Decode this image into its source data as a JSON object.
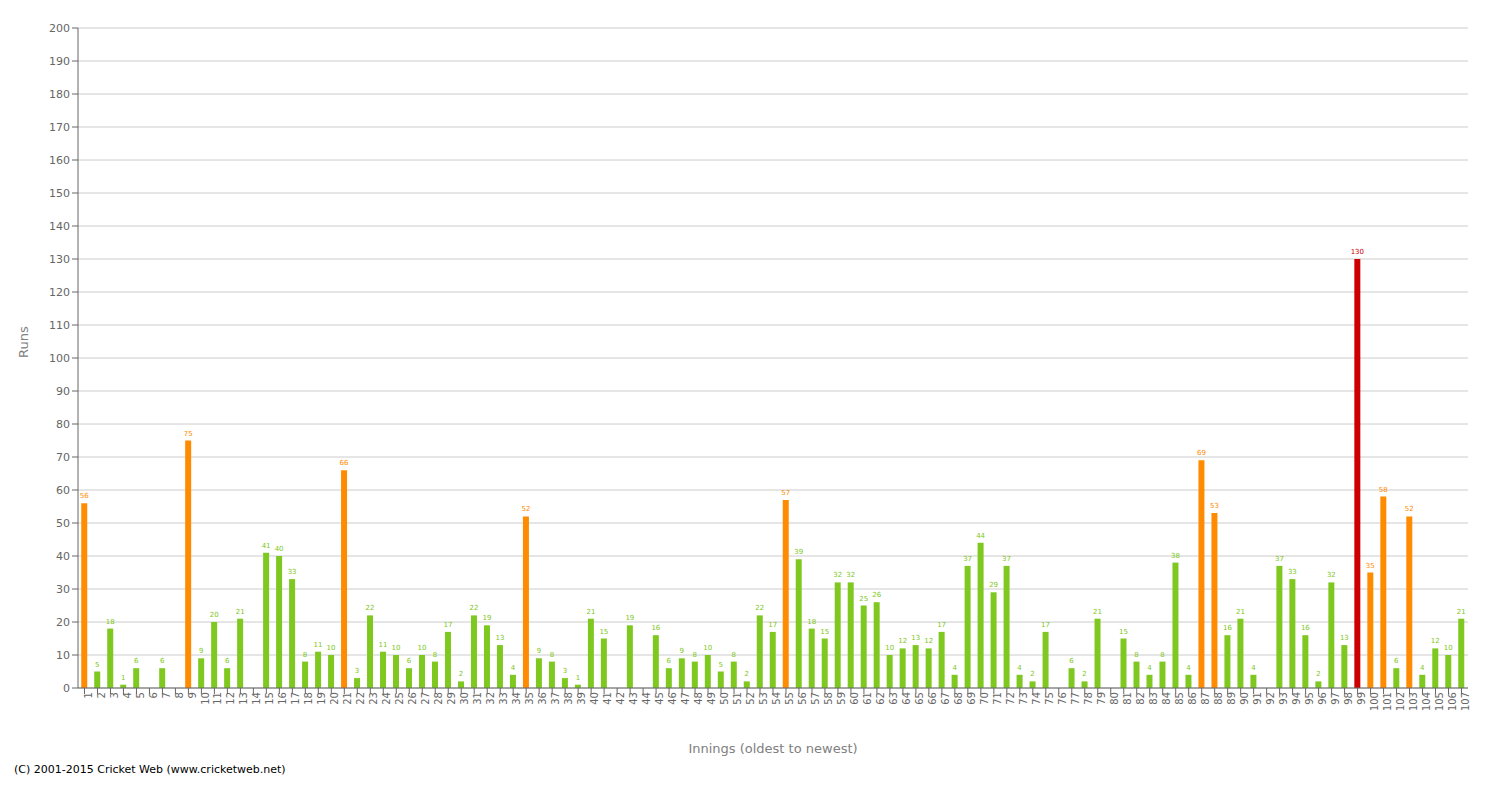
{
  "chart_data": {
    "type": "bar",
    "xlabel": "Innings (oldest to newest)",
    "ylabel": "Runs",
    "categories": [
      "1",
      "2",
      "3",
      "4",
      "5",
      "6",
      "7",
      "8",
      "9",
      "10",
      "11",
      "12",
      "13",
      "14",
      "15",
      "16",
      "17",
      "18",
      "19",
      "20",
      "21",
      "22",
      "23",
      "24",
      "25",
      "26",
      "27",
      "28",
      "29",
      "30",
      "31",
      "32",
      "33",
      "34",
      "35",
      "36",
      "37",
      "38",
      "39",
      "40",
      "41",
      "42",
      "43",
      "44",
      "45",
      "46",
      "47",
      "48",
      "49",
      "50",
      "51",
      "52",
      "53",
      "54",
      "55",
      "56",
      "57",
      "58",
      "59",
      "60",
      "61",
      "62",
      "63",
      "64",
      "65",
      "66",
      "67",
      "68",
      "69",
      "70",
      "71",
      "72",
      "73",
      "74",
      "75",
      "76",
      "77",
      "78",
      "79",
      "80",
      "81",
      "82",
      "83",
      "84",
      "85",
      "86",
      "87",
      "88",
      "89",
      "90",
      "91",
      "92",
      "93",
      "94",
      "95",
      "96",
      "97",
      "98",
      "99",
      "100",
      "101",
      "102",
      "103",
      "104",
      "105",
      "106",
      "107"
    ],
    "values": [
      56,
      5,
      18,
      1,
      6,
      0,
      6,
      0,
      75,
      9,
      20,
      6,
      21,
      0,
      41,
      40,
      33,
      8,
      11,
      10,
      66,
      3,
      22,
      11,
      10,
      6,
      10,
      8,
      17,
      2,
      22,
      19,
      13,
      4,
      52,
      9,
      8,
      3,
      1,
      21,
      15,
      0,
      19,
      0,
      16,
      6,
      9,
      8,
      10,
      5,
      8,
      2,
      22,
      17,
      57,
      39,
      18,
      15,
      32,
      32,
      25,
      26,
      10,
      12,
      13,
      12,
      17,
      4,
      37,
      44,
      29,
      37,
      4,
      2,
      17,
      0,
      6,
      2,
      21,
      0,
      15,
      8,
      4,
      8,
      38,
      4,
      69,
      53,
      16,
      21,
      4,
      0,
      37,
      33,
      16,
      2,
      32,
      13,
      130,
      35,
      58,
      6,
      52,
      4,
      12,
      10,
      21
    ],
    "colors": [
      "#ff8c00",
      "#7ec820",
      "#7ec820",
      "#7ec820",
      "#7ec820",
      "#7ec820",
      "#7ec820",
      "#7ec820",
      "#ff8c00",
      "#7ec820",
      "#7ec820",
      "#7ec820",
      "#7ec820",
      "#7ec820",
      "#7ec820",
      "#7ec820",
      "#7ec820",
      "#7ec820",
      "#7ec820",
      "#7ec820",
      "#ff8c00",
      "#7ec820",
      "#7ec820",
      "#7ec820",
      "#7ec820",
      "#7ec820",
      "#7ec820",
      "#7ec820",
      "#7ec820",
      "#7ec820",
      "#7ec820",
      "#7ec820",
      "#7ec820",
      "#7ec820",
      "#ff8c00",
      "#7ec820",
      "#7ec820",
      "#7ec820",
      "#7ec820",
      "#7ec820",
      "#7ec820",
      "#7ec820",
      "#7ec820",
      "#7ec820",
      "#7ec820",
      "#7ec820",
      "#7ec820",
      "#7ec820",
      "#7ec820",
      "#7ec820",
      "#7ec820",
      "#7ec820",
      "#7ec820",
      "#7ec820",
      "#ff8c00",
      "#7ec820",
      "#7ec820",
      "#7ec820",
      "#7ec820",
      "#7ec820",
      "#7ec820",
      "#7ec820",
      "#7ec820",
      "#7ec820",
      "#7ec820",
      "#7ec820",
      "#7ec820",
      "#7ec820",
      "#7ec820",
      "#7ec820",
      "#7ec820",
      "#7ec820",
      "#7ec820",
      "#7ec820",
      "#7ec820",
      "#7ec820",
      "#7ec820",
      "#7ec820",
      "#7ec820",
      "#7ec820",
      "#7ec820",
      "#7ec820",
      "#7ec820",
      "#7ec820",
      "#7ec820",
      "#7ec820",
      "#ff8c00",
      "#ff8c00",
      "#7ec820",
      "#7ec820",
      "#7ec820",
      "#7ec820",
      "#7ec820",
      "#7ec820",
      "#7ec820",
      "#7ec820",
      "#7ec820",
      "#7ec820",
      "#cc0000",
      "#ff8c00",
      "#ff8c00",
      "#7ec820",
      "#ff8c00",
      "#7ec820",
      "#7ec820",
      "#7ec820",
      "#7ec820"
    ],
    "ylim": [
      0,
      200
    ],
    "yticks": [
      0,
      10,
      20,
      30,
      40,
      50,
      60,
      70,
      80,
      90,
      100,
      110,
      120,
      130,
      140,
      150,
      160,
      170,
      180,
      190,
      200
    ],
    "grid": true,
    "data_labels": true,
    "annotations": [
      "(C) 2001-2015 Cricket Web (www.cricketweb.net)"
    ]
  }
}
